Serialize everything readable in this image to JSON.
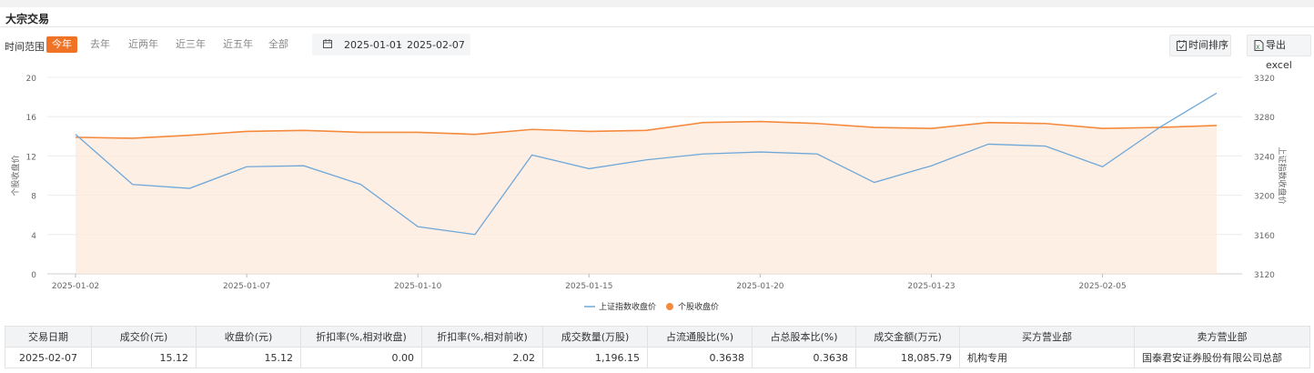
{
  "section": {
    "title": "大宗交易"
  },
  "filters": {
    "label": "时间范围",
    "ranges": [
      "今年",
      "去年",
      "近两年",
      "近三年",
      "近五年",
      "全部"
    ],
    "active_range": "今年",
    "date_start": "2025-01-01",
    "date_sep": "-",
    "date_end": "2025-02-07"
  },
  "toolbar": {
    "sort_label": "时间排序",
    "export_label": "导出excel"
  },
  "colors": {
    "accent": "#f07225",
    "index_line": "#6fa8d8",
    "stock_line": "#f58a3c",
    "area_fill": "#fde9dc"
  },
  "chart_data": {
    "type": "line",
    "x": [
      "2025-01-02",
      "2025-01-03",
      "2025-01-06",
      "2025-01-07",
      "2025-01-08",
      "2025-01-09",
      "2025-01-10",
      "2025-01-13",
      "2025-01-14",
      "2025-01-15",
      "2025-01-16",
      "2025-01-17",
      "2025-01-20",
      "2025-01-21",
      "2025-01-22",
      "2025-01-23",
      "2025-01-24",
      "2025-01-27",
      "2025-02-05",
      "2025-02-06",
      "2025-02-07"
    ],
    "xticks": [
      "2025-01-02",
      "2025-01-07",
      "2025-01-10",
      "2025-01-15",
      "2025-01-20",
      "2025-01-23",
      "2025-02-05"
    ],
    "ylabel_left": "个股收盘价",
    "ylabel_right": "上证指数收盘价",
    "yticks_left": [
      0,
      4,
      8,
      12,
      16,
      20
    ],
    "yticks_right": [
      3120,
      3160,
      3200,
      3240,
      3280,
      3320
    ],
    "ylim_left": [
      0,
      20
    ],
    "ylim_right": [
      3120,
      3320
    ],
    "grid": true,
    "legend_position": "bottom-center",
    "series": [
      {
        "name": "上证指数收盘价",
        "axis": "right",
        "style": "line",
        "values": [
          3262,
          3211,
          3207,
          3229,
          3230,
          3211,
          3168,
          3160,
          3241,
          3227,
          3236,
          3242,
          3244,
          3242,
          3213,
          3230,
          3252,
          3250,
          3229,
          3269,
          3304
        ]
      },
      {
        "name": "个股收盘价",
        "axis": "left",
        "style": "area",
        "values": [
          13.9,
          13.8,
          14.1,
          14.5,
          14.6,
          14.4,
          14.4,
          14.2,
          14.7,
          14.5,
          14.6,
          15.4,
          15.5,
          15.3,
          14.9,
          14.8,
          15.4,
          15.3,
          14.8,
          14.9,
          15.1
        ]
      }
    ]
  },
  "table": {
    "headers": [
      "交易日期",
      "成交价(元)",
      "收盘价(元)",
      "折扣率(%,相对收盘)",
      "折扣率(%,相对前收)",
      "成交数量(万股)",
      "占流通股比(%)",
      "占总股本比(%)",
      "成交金额(万元)",
      "买方营业部",
      "卖方营业部"
    ],
    "rows": [
      [
        "2025-02-07",
        "15.12",
        "15.12",
        "0.00",
        "2.02",
        "1,196.15",
        "0.3638",
        "0.3638",
        "18,085.79",
        "机构专用",
        "国泰君安证券股份有限公司总部"
      ]
    ]
  }
}
